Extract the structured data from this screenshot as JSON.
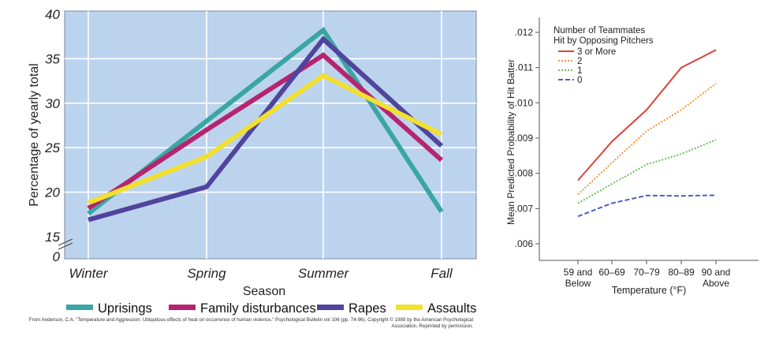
{
  "chart_data": [
    {
      "type": "line",
      "categories": [
        "Winter",
        "Spring",
        "Summer",
        "Fall"
      ],
      "xlabel": "Season",
      "ylabel": "Percentage of yearly total",
      "ylim": [
        15,
        40
      ],
      "yticks": [
        "15",
        "20",
        "25",
        "30",
        "35",
        "40"
      ],
      "axis_break_label": "0",
      "grid": true,
      "legend_position": "bottom",
      "series": [
        {
          "name": "Uprisings",
          "color": "#3aa6a2",
          "values": [
            17.6,
            28.0,
            38.2,
            17.8
          ]
        },
        {
          "name": "Family disturbances",
          "color": "#b5256f",
          "values": [
            18.2,
            27.0,
            35.4,
            23.6
          ]
        },
        {
          "name": "Rapes",
          "color": "#51449c",
          "values": [
            16.9,
            20.6,
            37.2,
            25.2
          ]
        },
        {
          "name": "Assaults",
          "color": "#f2e02d",
          "values": [
            18.8,
            24.0,
            33.1,
            26.5
          ]
        }
      ],
      "plot_background": "#bcd3ee",
      "credit_text": "From Anderson, C.A. \"Temperature and Aggression: Ubiquitous effects of heat on occurrence of human violence,\" Psychological Bulletin vol 106 (pp. 74-96). Copyright © 1989 by the American Psychological Association. Reprinted by permission."
    },
    {
      "type": "line",
      "categories": [
        "59 and Below",
        "60–69",
        "70–79",
        "80–89",
        "90 and Above"
      ],
      "xlabel": "Temperature (°F)",
      "ylabel": "Mean Predicted Probability of Hit Batter",
      "ylim": [
        0.006,
        0.012
      ],
      "yticks": [
        ".006",
        ".007",
        ".008",
        ".009",
        ".010",
        ".011",
        ".012"
      ],
      "legend_title": [
        "Number of Teammates",
        "Hit by Opposing Pitchers"
      ],
      "legend_position": "top-left",
      "series": [
        {
          "name": "3 or More",
          "color": "#d9443a",
          "dash": "solid",
          "values": [
            0.0078,
            0.0089,
            0.0098,
            0.011,
            0.0115
          ]
        },
        {
          "name": "2",
          "color": "#f0963a",
          "dash": "dotted",
          "values": [
            0.0074,
            0.0083,
            0.0092,
            0.0098,
            0.01055
          ]
        },
        {
          "name": "1",
          "color": "#6cbf5a",
          "dash": "dotted",
          "values": [
            0.00715,
            0.0077,
            0.00825,
            0.00855,
            0.00895
          ]
        },
        {
          "name": "0",
          "color": "#4a5fbd",
          "dash": "dashed",
          "values": [
            0.00678,
            0.00715,
            0.00737,
            0.00736,
            0.00738
          ]
        }
      ]
    }
  ]
}
